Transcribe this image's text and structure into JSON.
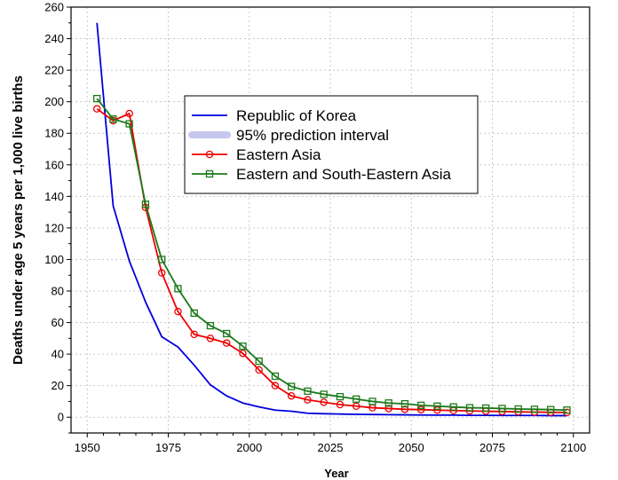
{
  "chart_data": {
    "type": "line",
    "title": "",
    "xlabel": "Year",
    "ylabel": "Deaths under age 5 years per 1,000 live births",
    "xlim": [
      1945,
      2105
    ],
    "ylim": [
      -10,
      260
    ],
    "x_ticks": [
      1950,
      1975,
      2000,
      2025,
      2050,
      2075,
      2100
    ],
    "y_ticks": [
      0,
      20,
      40,
      60,
      80,
      100,
      120,
      140,
      160,
      180,
      200,
      220,
      240,
      260
    ],
    "grid": true,
    "legend_position": "center-right",
    "series": [
      {
        "name": "Republic of Korea",
        "color": "#0000dd",
        "marker": "none",
        "x": [
          1953,
          1958,
          1963,
          1968,
          1973,
          1978,
          1983,
          1988,
          1993,
          1998,
          2003,
          2008,
          2013,
          2018,
          2023,
          2028,
          2033,
          2038,
          2043,
          2048,
          2053,
          2058,
          2063,
          2068,
          2073,
          2078,
          2083,
          2088,
          2093,
          2098
        ],
        "values": [
          250,
          134,
          99,
          73,
          51,
          44.5,
          33,
          20.5,
          13.5,
          9,
          6.5,
          4.5,
          3.8,
          2.5,
          2.2,
          2,
          1.8,
          1.7,
          1.6,
          1.5,
          1.4,
          1.3,
          1.3,
          1.2,
          1.2,
          1.1,
          1.1,
          1.1,
          1.0,
          1.0
        ]
      },
      {
        "name": "95% prediction interval",
        "color": "#c6c8f0",
        "marker": "none",
        "x": [],
        "values": []
      },
      {
        "name": "Eastern Asia",
        "color": "#ee0000",
        "marker": "circle",
        "x": [
          1953,
          1958,
          1963,
          1968,
          1973,
          1978,
          1983,
          1988,
          1993,
          1998,
          2003,
          2008,
          2013,
          2018,
          2023,
          2028,
          2033,
          2038,
          2043,
          2048,
          2053,
          2058,
          2063,
          2068,
          2073,
          2078,
          2083,
          2088,
          2093,
          2098
        ],
        "values": [
          195.5,
          188,
          192.5,
          133,
          91.5,
          67,
          52.5,
          50,
          47,
          40.5,
          30,
          20,
          13.5,
          11,
          9.5,
          8,
          7,
          6,
          5.5,
          5,
          4.8,
          4.5,
          4.2,
          4,
          3.8,
          3.6,
          3.4,
          3.2,
          3.1,
          3
        ]
      },
      {
        "name": "Eastern and South-Eastern Asia",
        "color": "#1a7a1a",
        "marker": "square",
        "x": [
          1953,
          1958,
          1963,
          1968,
          1973,
          1978,
          1983,
          1988,
          1993,
          1998,
          2003,
          2008,
          2013,
          2018,
          2023,
          2028,
          2033,
          2038,
          2043,
          2048,
          2053,
          2058,
          2063,
          2068,
          2073,
          2078,
          2083,
          2088,
          2093,
          2098
        ],
        "values": [
          202,
          189,
          186,
          135,
          100,
          81.5,
          66,
          58,
          53,
          45,
          35.5,
          26,
          19.5,
          16.5,
          14.5,
          13,
          11.5,
          10,
          9,
          8.5,
          7.5,
          7,
          6.5,
          6,
          5.8,
          5.5,
          5.2,
          5,
          4.8,
          4.5
        ]
      }
    ]
  }
}
